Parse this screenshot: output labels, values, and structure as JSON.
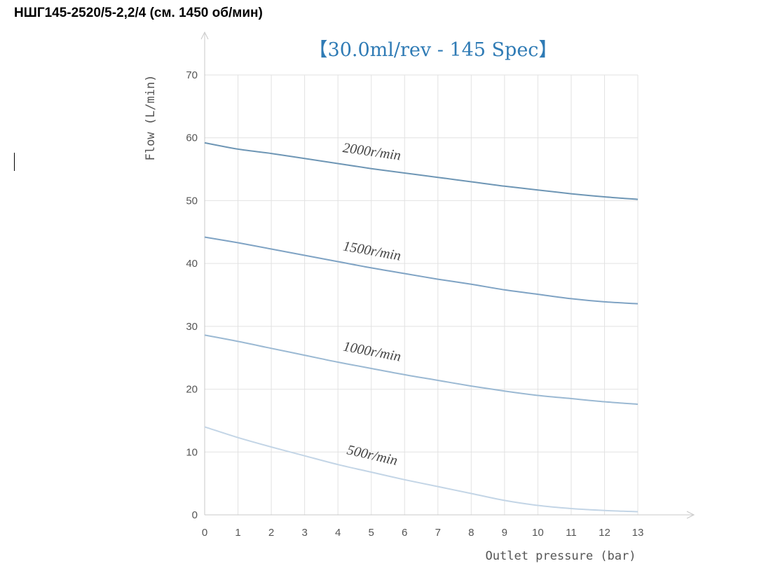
{
  "page": {
    "heading": "НШГ145-2520/5-2,2/4 (см. 1450 об/мин)"
  },
  "chart_data": {
    "type": "line",
    "title": "【30.0ml/rev - 145 Spec】",
    "title_color": "#2f7bb5",
    "xlabel": "Outlet pressure (bar)",
    "ylabel": "Flow (L/min)",
    "xlim": [
      0,
      13
    ],
    "ylim": [
      0,
      70
    ],
    "x_ticks": [
      0,
      1,
      2,
      3,
      4,
      5,
      6,
      7,
      8,
      9,
      10,
      11,
      12,
      13
    ],
    "y_ticks": [
      0,
      10,
      20,
      30,
      40,
      50,
      60,
      70
    ],
    "grid": true,
    "grid_color": "#e2e2e2",
    "axis_color": "#c8c8c8",
    "x": [
      0,
      1,
      2,
      3,
      4,
      5,
      6,
      7,
      8,
      9,
      10,
      11,
      12,
      13
    ],
    "series": [
      {
        "name": "2000r/min",
        "color": "#6e96b5",
        "values": [
          59.2,
          58.2,
          57.5,
          56.7,
          55.9,
          55.1,
          54.4,
          53.7,
          53.0,
          52.3,
          51.7,
          51.1,
          50.6,
          50.2
        ]
      },
      {
        "name": "1500r/min",
        "color": "#7fa3c4",
        "values": [
          44.2,
          43.3,
          42.3,
          41.3,
          40.3,
          39.3,
          38.4,
          37.5,
          36.7,
          35.8,
          35.1,
          34.4,
          33.9,
          33.6
        ]
      },
      {
        "name": "1000r/min",
        "color": "#9bb9d3",
        "values": [
          28.6,
          27.6,
          26.5,
          25.4,
          24.3,
          23.3,
          22.3,
          21.4,
          20.5,
          19.7,
          19.0,
          18.5,
          18.0,
          17.6
        ]
      },
      {
        "name": "500r/min",
        "color": "#c3d5e6",
        "values": [
          14.0,
          12.3,
          10.8,
          9.4,
          8.0,
          6.8,
          5.6,
          4.5,
          3.4,
          2.3,
          1.5,
          1.0,
          0.7,
          0.5
        ]
      }
    ]
  }
}
